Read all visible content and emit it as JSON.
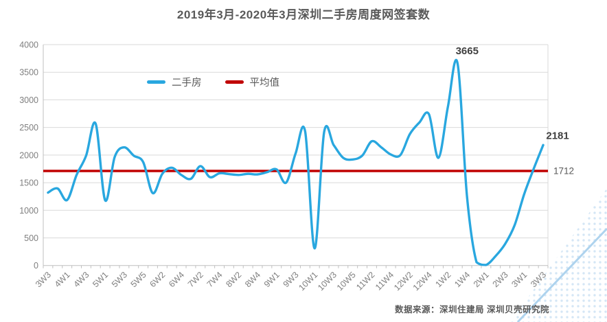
{
  "title": "2019年3月-2020年3月深圳二手房周度网签套数",
  "source": "数据来源：深圳住建局  深圳贝壳研究院",
  "legend": [
    {
      "label": "二手房",
      "color": "#29a7df"
    },
    {
      "label": "平均值",
      "color": "#c00000"
    }
  ],
  "colors": {
    "series_line": "#29a7df",
    "average_line": "#c00000",
    "grid": "#d9d9d9",
    "axis": "#bfbfbf",
    "tick_label": "#7f7f7f",
    "title_text": "#595959",
    "annotation_bold": "#404040",
    "annotation_gray": "#595959",
    "source_text": "#595959",
    "halftone_dot": "#cfe3f4",
    "swoosh": "#aed3ee"
  },
  "chart_data": {
    "type": "line",
    "title": "2019年3月-2020年3月深圳二手房周度网签套数",
    "xlabel": "",
    "ylabel": "",
    "ylim": [
      0,
      4000
    ],
    "y_ticks": [
      0,
      500,
      1000,
      1500,
      2000,
      2500,
      3000,
      3500,
      4000
    ],
    "grid": "horizontal",
    "legend_position": "top-center",
    "x_label_frequency": "every second category",
    "categories": [
      "3W3",
      "3W4",
      "4W1",
      "4W2",
      "4W3",
      "4W4",
      "5W1",
      "5W2",
      "5W3",
      "5W4",
      "5W5",
      "6W1",
      "6W2",
      "6W3",
      "6W4",
      "7W1",
      "7W2",
      "7W3",
      "7W4",
      "8W1",
      "8W2",
      "8W3",
      "8W4",
      "8W5",
      "9W1",
      "9W2",
      "9W3",
      "9W4",
      "10W1",
      "10W2",
      "10W3",
      "10W4",
      "10W5",
      "11W1",
      "11W2",
      "11W3",
      "11W4",
      "12W1",
      "12W2",
      "12W3",
      "12W4",
      "1W1",
      "1W2",
      "1W3",
      "1W4",
      "1W5",
      "2W1",
      "2W2",
      "2W3",
      "2W4",
      "3W1",
      "3W2",
      "3W3"
    ],
    "series": [
      {
        "name": "二手房",
        "color": "#29a7df",
        "smooth": true,
        "values": [
          1320,
          1395,
          1185,
          1640,
          1990,
          2570,
          1180,
          1965,
          2140,
          1990,
          1870,
          1310,
          1660,
          1770,
          1640,
          1570,
          1800,
          1600,
          1670,
          1655,
          1640,
          1660,
          1650,
          1690,
          1740,
          1500,
          2030,
          2430,
          310,
          2420,
          2180,
          1950,
          1920,
          1990,
          2250,
          2140,
          2010,
          2000,
          2380,
          2590,
          2740,
          1950,
          2880,
          3665,
          1250,
          60,
          10,
          170,
          390,
          730,
          1290,
          1750,
          2181
        ]
      },
      {
        "name": "平均值",
        "color": "#c00000",
        "constant": true,
        "value": 1712
      }
    ],
    "annotations": [
      {
        "text": "3665",
        "role": "peak",
        "category": "1W3"
      },
      {
        "text": "2181",
        "role": "end",
        "category": "3W3"
      },
      {
        "text": "1712",
        "role": "average-line"
      }
    ]
  }
}
